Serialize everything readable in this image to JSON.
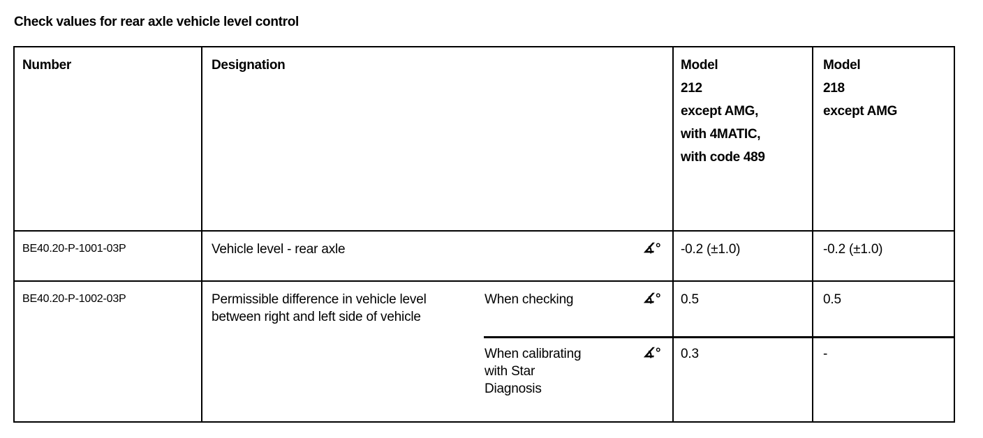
{
  "title": "Check values for rear axle vehicle level control",
  "table": {
    "headers": {
      "number": "Number",
      "designation": "Designation",
      "model_212": [
        "Model",
        "212",
        "except AMG,",
        "with 4MATIC,",
        "with code 489"
      ],
      "model_218": [
        "Model",
        "218",
        "except AMG"
      ]
    },
    "rows": [
      {
        "number": "BE40.20-P-1001-03P",
        "designation": "Vehicle level - rear axle",
        "icon": "angle-degree-icon",
        "icon_glyph": "∡°",
        "model_212": "-0.2 (±1.0)",
        "model_218": "-0.2 (±1.0)"
      },
      {
        "number": "BE40.20-P-1002-03P",
        "designation": [
          "Permissible difference in vehicle level",
          "between right and left side of vehicle"
        ],
        "sub_rows": [
          {
            "condition": [
              "When checking"
            ],
            "icon_glyph": "∡°",
            "model_212": "0.5",
            "model_218": "0.5"
          },
          {
            "condition": [
              "When calibrating",
              "with Star",
              "Diagnosis"
            ],
            "icon_glyph": "∡°",
            "model_212": "0.3",
            "model_218": "-"
          }
        ]
      }
    ]
  }
}
